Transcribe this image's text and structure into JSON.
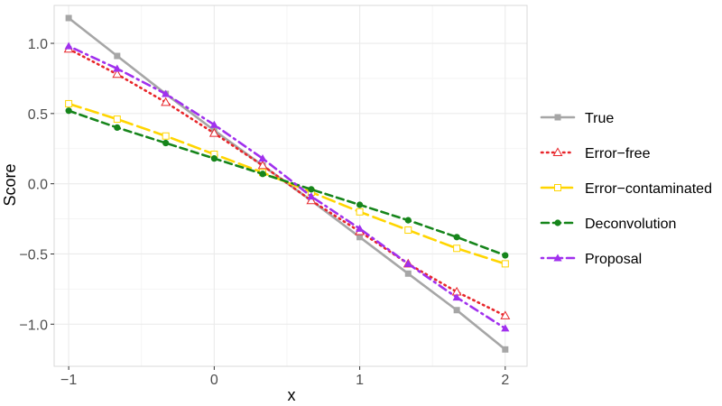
{
  "chart_data": {
    "type": "line",
    "xlabel": "x",
    "ylabel": "Score",
    "xlim": [
      -1.1,
      2.15
    ],
    "ylim": [
      -1.3,
      1.27
    ],
    "x_ticks": [
      -1,
      0,
      1,
      2
    ],
    "y_ticks": [
      -1.0,
      -0.5,
      0.0,
      0.5,
      1.0
    ],
    "x_tick_labels": [
      "−1",
      "0",
      "1",
      "2"
    ],
    "y_tick_labels": [
      "−1.0",
      "−0.5",
      "0.0",
      "0.5",
      "1.0"
    ],
    "grid": true,
    "legend_position": "right",
    "x": [
      -1.0,
      -0.667,
      -0.333,
      0.0,
      0.333,
      0.667,
      1.0,
      1.333,
      1.667,
      2.0
    ],
    "series": [
      {
        "name": "True",
        "color": "#a6a6a6",
        "dash": "solid",
        "marker": "square-filled",
        "values": [
          1.18,
          0.91,
          0.64,
          0.38,
          0.13,
          -0.12,
          -0.38,
          -0.64,
          -0.9,
          -1.18
        ]
      },
      {
        "name": "Error−free",
        "color": "#e8262b",
        "dash": "dotted",
        "marker": "triangle-open",
        "values": [
          0.96,
          0.78,
          0.58,
          0.36,
          0.13,
          -0.12,
          -0.34,
          -0.57,
          -0.77,
          -0.94
        ]
      },
      {
        "name": "Error−contaminated",
        "color": "#ffd500",
        "dash": "longdash",
        "marker": "square-open",
        "values": [
          0.57,
          0.46,
          0.34,
          0.21,
          0.08,
          -0.06,
          -0.2,
          -0.33,
          -0.46,
          -0.57
        ]
      },
      {
        "name": "Deconvolution",
        "color": "#16851b",
        "dash": "dashed",
        "marker": "circle-filled",
        "values": [
          0.52,
          0.4,
          0.29,
          0.18,
          0.07,
          -0.04,
          -0.15,
          -0.26,
          -0.38,
          -0.51
        ]
      },
      {
        "name": "Proposal",
        "color": "#a030ee",
        "dash": "dotdash",
        "marker": "triangle-filled",
        "values": [
          0.98,
          0.82,
          0.64,
          0.42,
          0.18,
          -0.09,
          -0.32,
          -0.57,
          -0.81,
          -1.03
        ]
      }
    ]
  }
}
